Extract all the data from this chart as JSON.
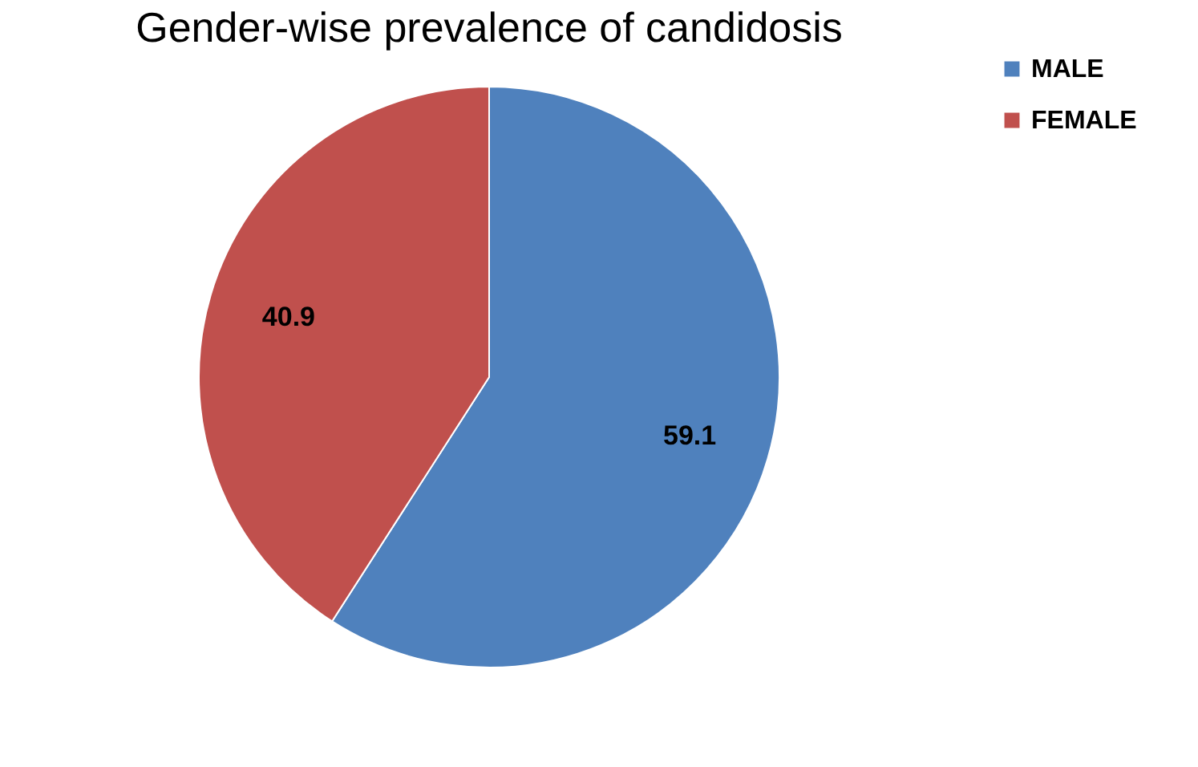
{
  "chart_data": {
    "type": "pie",
    "title": "Gender-wise prevalence of candidosis",
    "categories": [
      "MALE",
      "FEMALE"
    ],
    "values": [
      59.1,
      40.9
    ],
    "colors": [
      "#4f81bd",
      "#c0504d"
    ],
    "data_labels": true,
    "legend": "right"
  }
}
